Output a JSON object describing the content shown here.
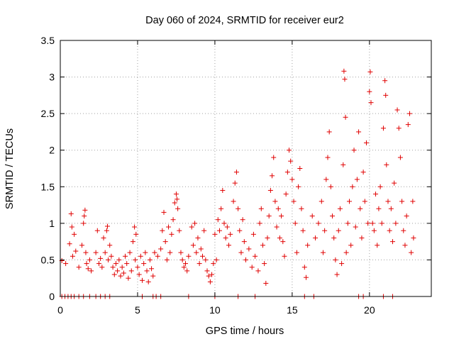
{
  "chart_data": {
    "type": "scatter",
    "title": "Day 060 of 2024, SRMTID for receiver eur2",
    "xlabel": "GPS time / hours",
    "ylabel": "SRMTID / TECUs",
    "xlim": [
      0,
      24
    ],
    "ylim": [
      0,
      3.5
    ],
    "xticks": [
      0,
      5,
      10,
      15,
      20
    ],
    "xtick_labels": [
      "0",
      "5",
      "10",
      "15",
      "20"
    ],
    "yticks": [
      0,
      0.5,
      1,
      1.5,
      2,
      2.5,
      3,
      3.5
    ],
    "ytick_labels": [
      "0",
      "0.5",
      "1",
      "1.5",
      "2",
      "2.5",
      "3",
      "3.5"
    ],
    "grid": true,
    "marker": "+",
    "marker_color": "#e00000",
    "series": [
      {
        "name": "SRMTID",
        "description": "dense cloud of per-satellite samples; representative points read from the figure",
        "points": [
          [
            0.1,
            0.49
          ],
          [
            0.35,
            0.45
          ],
          [
            0.6,
            0.72
          ],
          [
            0.7,
            1.13
          ],
          [
            0.75,
            0.95
          ],
          [
            0.8,
            0.55
          ],
          [
            0.9,
            0.85
          ],
          [
            1.0,
            0.62
          ],
          [
            1.2,
            0.4
          ],
          [
            1.4,
            0.7
          ],
          [
            1.5,
            1.0
          ],
          [
            1.55,
            1.1
          ],
          [
            1.6,
            1.18
          ],
          [
            1.65,
            0.6
          ],
          [
            1.7,
            0.45
          ],
          [
            1.8,
            0.38
          ],
          [
            1.9,
            0.5
          ],
          [
            2.0,
            0.35
          ],
          [
            2.3,
            0.6
          ],
          [
            2.4,
            0.9
          ],
          [
            2.5,
            0.45
          ],
          [
            2.6,
            0.52
          ],
          [
            2.7,
            0.4
          ],
          [
            2.8,
            0.8
          ],
          [
            2.9,
            0.6
          ],
          [
            3.0,
            0.9
          ],
          [
            3.05,
            0.96
          ],
          [
            3.1,
            0.5
          ],
          [
            3.2,
            0.7
          ],
          [
            3.3,
            0.55
          ],
          [
            3.4,
            0.4
          ],
          [
            3.5,
            0.3
          ],
          [
            3.6,
            0.45
          ],
          [
            3.7,
            0.35
          ],
          [
            3.8,
            0.5
          ],
          [
            3.9,
            0.28
          ],
          [
            4.0,
            0.4
          ],
          [
            4.1,
            0.32
          ],
          [
            4.2,
            0.55
          ],
          [
            4.3,
            0.45
          ],
          [
            4.4,
            0.25
          ],
          [
            4.5,
            0.6
          ],
          [
            4.6,
            0.35
          ],
          [
            4.7,
            0.75
          ],
          [
            4.8,
            0.95
          ],
          [
            4.85,
            0.5
          ],
          [
            4.9,
            0.85
          ],
          [
            5.0,
            0.4
          ],
          [
            5.1,
            0.3
          ],
          [
            5.2,
            0.55
          ],
          [
            5.3,
            0.22
          ],
          [
            5.4,
            0.45
          ],
          [
            5.5,
            0.6
          ],
          [
            5.6,
            0.35
          ],
          [
            5.7,
            0.2
          ],
          [
            5.8,
            0.5
          ],
          [
            5.9,
            0.38
          ],
          [
            6.0,
            0.28
          ],
          [
            6.1,
            0.6
          ],
          [
            6.3,
            0.55
          ],
          [
            6.5,
            0.65
          ],
          [
            6.6,
            0.9
          ],
          [
            6.7,
            1.15
          ],
          [
            6.8,
            0.75
          ],
          [
            6.9,
            0.5
          ],
          [
            7.0,
            0.95
          ],
          [
            7.1,
            0.6
          ],
          [
            7.2,
            0.85
          ],
          [
            7.3,
            1.05
          ],
          [
            7.4,
            1.28
          ],
          [
            7.5,
            1.4
          ],
          [
            7.55,
            1.33
          ],
          [
            7.6,
            1.2
          ],
          [
            7.7,
            0.9
          ],
          [
            7.8,
            0.6
          ],
          [
            7.9,
            0.5
          ],
          [
            8.0,
            0.4
          ],
          [
            8.1,
            0.45
          ],
          [
            8.2,
            0.35
          ],
          [
            8.3,
            0.55
          ],
          [
            8.5,
            0.95
          ],
          [
            8.6,
            0.7
          ],
          [
            8.7,
            1.0
          ],
          [
            8.8,
            0.6
          ],
          [
            8.9,
            0.8
          ],
          [
            9.0,
            0.45
          ],
          [
            9.1,
            0.65
          ],
          [
            9.2,
            0.55
          ],
          [
            9.3,
            0.9
          ],
          [
            9.4,
            0.5
          ],
          [
            9.5,
            0.35
          ],
          [
            9.6,
            0.28
          ],
          [
            9.7,
            0.2
          ],
          [
            9.8,
            0.3
          ],
          [
            9.9,
            0.45
          ],
          [
            10.0,
            0.85
          ],
          [
            10.1,
            0.5
          ],
          [
            10.2,
            1.05
          ],
          [
            10.3,
            0.9
          ],
          [
            10.4,
            1.2
          ],
          [
            10.5,
            1.45
          ],
          [
            10.6,
            1.0
          ],
          [
            10.7,
            0.8
          ],
          [
            10.8,
            0.95
          ],
          [
            10.9,
            0.7
          ],
          [
            11.0,
            0.85
          ],
          [
            11.2,
            1.3
          ],
          [
            11.3,
            1.55
          ],
          [
            11.4,
            1.7
          ],
          [
            11.5,
            1.2
          ],
          [
            11.6,
            0.9
          ],
          [
            11.7,
            0.6
          ],
          [
            11.8,
            1.05
          ],
          [
            11.9,
            0.75
          ],
          [
            12.0,
            0.5
          ],
          [
            12.2,
            0.65
          ],
          [
            12.4,
            0.4
          ],
          [
            12.5,
            0.85
          ],
          [
            12.6,
            0.55
          ],
          [
            12.8,
            0.35
          ],
          [
            12.9,
            1.0
          ],
          [
            13.0,
            1.2
          ],
          [
            13.1,
            0.7
          ],
          [
            13.2,
            0.45
          ],
          [
            13.3,
            0.18
          ],
          [
            13.4,
            0.8
          ],
          [
            13.5,
            1.1
          ],
          [
            13.6,
            1.45
          ],
          [
            13.7,
            1.65
          ],
          [
            13.8,
            1.9
          ],
          [
            13.9,
            1.3
          ],
          [
            14.0,
            0.95
          ],
          [
            14.1,
            1.2
          ],
          [
            14.2,
            0.8
          ],
          [
            14.3,
            1.1
          ],
          [
            14.4,
            0.75
          ],
          [
            14.5,
            0.55
          ],
          [
            14.6,
            1.4
          ],
          [
            14.7,
            1.7
          ],
          [
            14.8,
            2.0
          ],
          [
            14.9,
            1.85
          ],
          [
            15.0,
            1.6
          ],
          [
            15.1,
            1.3
          ],
          [
            15.2,
            1.0
          ],
          [
            15.3,
            0.6
          ],
          [
            15.4,
            1.5
          ],
          [
            15.5,
            1.75
          ],
          [
            15.6,
            1.2
          ],
          [
            15.7,
            0.9
          ],
          [
            15.8,
            0.4
          ],
          [
            15.9,
            0.26
          ],
          [
            16.0,
            0.7
          ],
          [
            16.3,
            1.1
          ],
          [
            16.5,
            0.8
          ],
          [
            16.7,
            1.0
          ],
          [
            16.9,
            1.3
          ],
          [
            17.0,
            0.6
          ],
          [
            17.1,
            0.9
          ],
          [
            17.2,
            1.6
          ],
          [
            17.3,
            1.9
          ],
          [
            17.4,
            2.25
          ],
          [
            17.5,
            1.5
          ],
          [
            17.6,
            1.1
          ],
          [
            17.7,
            0.8
          ],
          [
            17.8,
            0.5
          ],
          [
            17.9,
            0.3
          ],
          [
            18.0,
            0.9
          ],
          [
            18.1,
            1.2
          ],
          [
            18.2,
            0.45
          ],
          [
            18.3,
            1.8
          ],
          [
            18.35,
            3.08
          ],
          [
            18.4,
            2.97
          ],
          [
            18.45,
            2.45
          ],
          [
            18.5,
            0.6
          ],
          [
            18.6,
            1.0
          ],
          [
            18.7,
            1.3
          ],
          [
            18.8,
            0.7
          ],
          [
            18.9,
            1.5
          ],
          [
            19.0,
            2.0
          ],
          [
            19.1,
            0.95
          ],
          [
            19.2,
            1.6
          ],
          [
            19.3,
            2.25
          ],
          [
            19.4,
            1.2
          ],
          [
            19.5,
            0.8
          ],
          [
            19.6,
            1.7
          ],
          [
            19.7,
            1.3
          ],
          [
            19.8,
            2.1
          ],
          [
            19.9,
            1.0
          ],
          [
            20.0,
            2.8
          ],
          [
            20.05,
            3.07
          ],
          [
            20.1,
            2.65
          ],
          [
            20.2,
            1.0
          ],
          [
            20.3,
            0.9
          ],
          [
            20.4,
            1.4
          ],
          [
            20.5,
            0.7
          ],
          [
            20.6,
            1.2
          ],
          [
            20.7,
            1.5
          ],
          [
            20.8,
            1.0
          ],
          [
            20.9,
            2.3
          ],
          [
            21.0,
            2.95
          ],
          [
            21.05,
            2.75
          ],
          [
            21.1,
            1.8
          ],
          [
            21.2,
            1.3
          ],
          [
            21.3,
            0.9
          ],
          [
            21.4,
            1.2
          ],
          [
            21.5,
            0.75
          ],
          [
            21.6,
            1.55
          ],
          [
            21.7,
            1.0
          ],
          [
            21.8,
            2.55
          ],
          [
            21.9,
            2.3
          ],
          [
            22.0,
            1.9
          ],
          [
            22.1,
            1.3
          ],
          [
            22.2,
            0.9
          ],
          [
            22.3,
            0.7
          ],
          [
            22.4,
            1.1
          ],
          [
            22.5,
            2.35
          ],
          [
            22.6,
            2.5
          ],
          [
            22.7,
            0.6
          ],
          [
            22.8,
            1.3
          ],
          [
            22.85,
            0.8
          ]
        ],
        "zero_points_x": [
          0.1,
          0.3,
          0.5,
          0.7,
          0.9,
          1.2,
          1.5,
          1.9,
          2.3,
          2.6,
          2.9,
          3.2,
          5.3,
          6.0,
          6.2,
          6.5,
          8.3,
          10.0,
          11.5,
          12.6,
          15.8,
          16.4,
          19.3,
          19.6,
          20.9,
          21.5
        ]
      }
    ]
  }
}
